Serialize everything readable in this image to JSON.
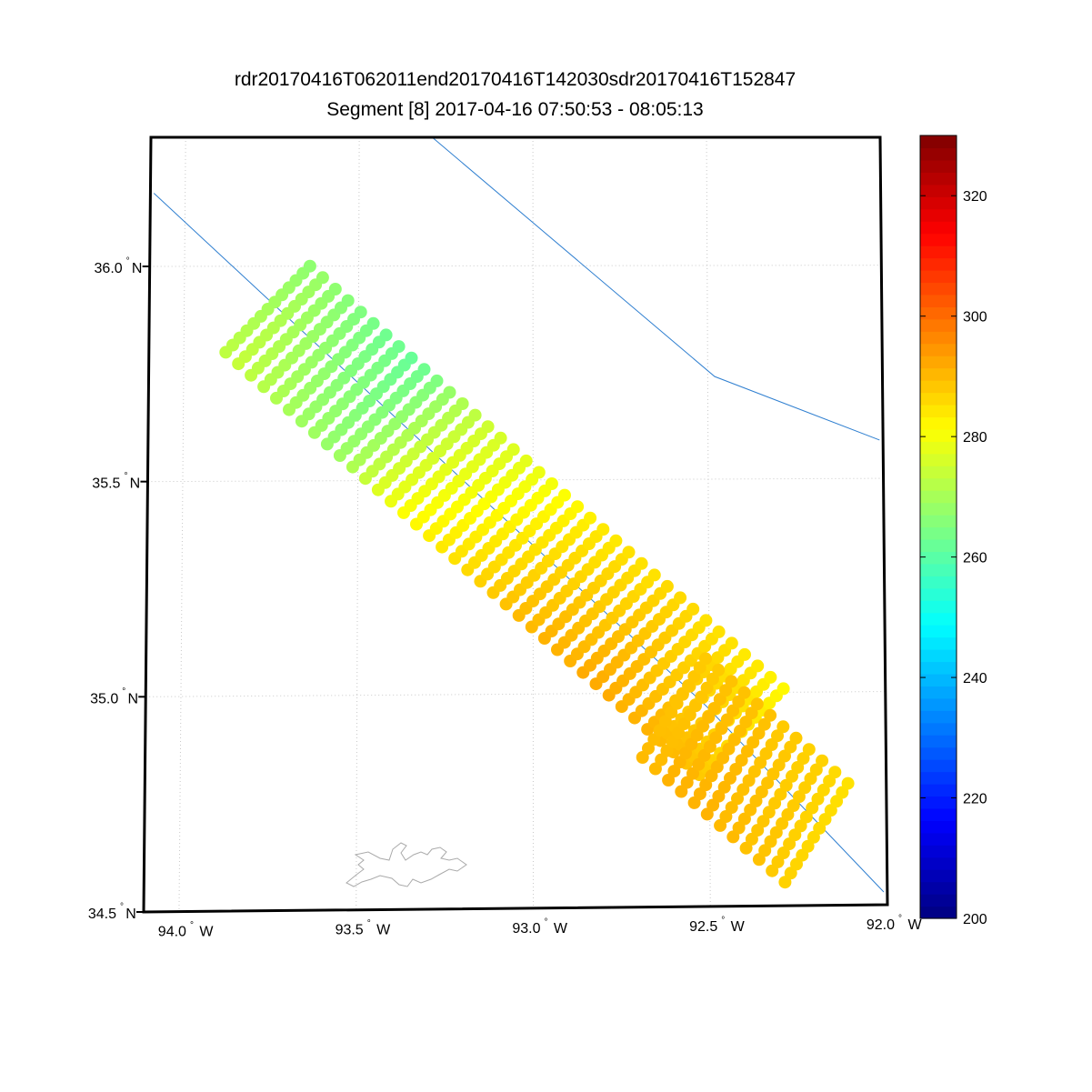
{
  "title_line1": "rdr20170416T062011end20170416T142030sdr20170416T152847",
  "title_line2": "Segment [8] 2017-04-16 07:50:53 - 08:05:13",
  "map": {
    "lat_range": [
      34.5,
      36.3
    ],
    "lon_range": [
      -94.1,
      -92.0
    ],
    "lat_ticks": [
      {
        "value": 36.0,
        "label": "36.0",
        "suffix": "N"
      },
      {
        "value": 35.5,
        "label": "35.5",
        "suffix": "N"
      },
      {
        "value": 35.0,
        "label": "35.0",
        "suffix": "N"
      },
      {
        "value": 34.5,
        "label": "34.5",
        "suffix": "N"
      }
    ],
    "lon_ticks": [
      {
        "value": -94.0,
        "label": "94.0",
        "suffix": "W"
      },
      {
        "value": -93.5,
        "label": "93.5",
        "suffix": "W"
      },
      {
        "value": -93.0,
        "label": "93.0",
        "suffix": "W"
      },
      {
        "value": -92.5,
        "label": "92.5",
        "suffix": "W"
      },
      {
        "value": -92.0,
        "label": "92.0",
        "suffix": "W"
      }
    ],
    "grid": true,
    "line_color": "#2f7fd0",
    "gridline_color": "#c8c8c8"
  },
  "colorbar": {
    "min": 200,
    "max": 330,
    "ticks": [
      "200",
      "220",
      "240",
      "260",
      "280",
      "300",
      "320"
    ],
    "colormap": "jet"
  },
  "chart_data": {
    "type": "scatter",
    "description_units": "longitude (deg), latitude (deg), value",
    "track_lines": [
      {
        "points": [
          [
            -94.09,
            36.17
          ],
          [
            -92.51,
            34.97
          ],
          [
            -92.01,
            34.53
          ]
        ]
      },
      {
        "points": [
          [
            -93.29,
            36.3
          ],
          [
            -92.48,
            35.74
          ],
          [
            -92.01,
            35.59
          ]
        ]
      }
    ],
    "swath_segments": [
      {
        "first_row_start": [
          -93.88,
          35.8
        ],
        "first_row_end": [
          -93.64,
          36.0
        ],
        "row_step": [
          0.0365,
          -0.0268
        ],
        "rows": 38,
        "cols": 13,
        "values_along_track": [
          270,
          271,
          270,
          269,
          268,
          267,
          266,
          266,
          265,
          266,
          268,
          271,
          274,
          276,
          278,
          279,
          280,
          281,
          282,
          283,
          284,
          285,
          286,
          287,
          287,
          288,
          288,
          288,
          289,
          289,
          289,
          288,
          288,
          288,
          287,
          287,
          286,
          285
        ],
        "value_gradient_cross_track": 6
      },
      {
        "first_row_start": [
          -92.69,
          34.85
        ],
        "first_row_end": [
          -92.51,
          35.08
        ],
        "row_step": [
          0.0365,
          -0.0268
        ],
        "rows": 12,
        "cols": 12,
        "values_along_track": [
          289,
          289,
          290,
          290,
          290,
          290,
          289,
          289,
          288,
          288,
          287,
          286
        ],
        "value_gradient_cross_track": 2
      }
    ]
  }
}
